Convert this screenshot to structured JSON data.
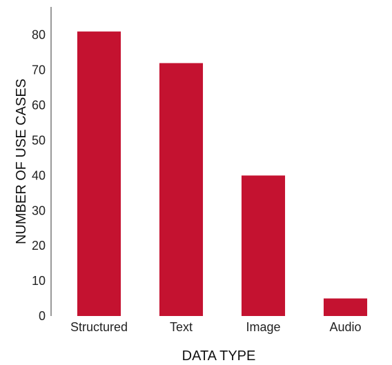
{
  "chart_data": {
    "type": "bar",
    "title": "",
    "xlabel": "DATA TYPE",
    "ylabel": "NUMBER OF USE CASES",
    "categories": [
      "Structured",
      "Text",
      "Image",
      "Audio"
    ],
    "values": [
      81,
      72,
      40,
      5
    ],
    "ylim": [
      0,
      88
    ],
    "yticks": [
      0,
      10,
      20,
      30,
      40,
      50,
      60,
      70,
      80
    ],
    "bar_color": "#c41230",
    "grid": false,
    "legend": "none"
  }
}
